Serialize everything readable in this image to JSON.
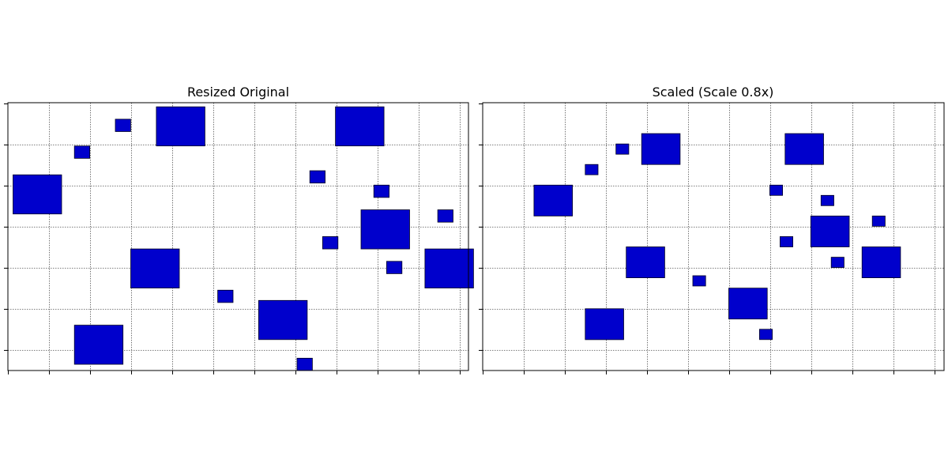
{
  "chart_data": [
    {
      "type": "scatter",
      "title": "Resized Original",
      "xlabel": "",
      "ylabel": "",
      "xlim": [
        0,
        18
      ],
      "ylim": [
        13,
        0
      ],
      "grid": true,
      "square_color": "#0000cc",
      "squares": [
        {
          "x": 0.2,
          "y": 3.5,
          "size": 1.9
        },
        {
          "x": 2.6,
          "y": 2.1,
          "size": 0.6
        },
        {
          "x": 4.2,
          "y": 0.8,
          "size": 0.6
        },
        {
          "x": 5.8,
          "y": 0.2,
          "size": 1.9
        },
        {
          "x": 4.8,
          "y": 7.1,
          "size": 1.9
        },
        {
          "x": 2.6,
          "y": 10.8,
          "size": 1.9
        },
        {
          "x": 8.2,
          "y": 9.1,
          "size": 0.6
        },
        {
          "x": 9.8,
          "y": 9.6,
          "size": 1.9
        },
        {
          "x": 11.3,
          "y": 12.4,
          "size": 0.6
        },
        {
          "x": 11.8,
          "y": 3.3,
          "size": 0.6
        },
        {
          "x": 12.3,
          "y": 6.5,
          "size": 0.6
        },
        {
          "x": 12.8,
          "y": 0.2,
          "size": 1.9
        },
        {
          "x": 14.3,
          "y": 4.0,
          "size": 0.6
        },
        {
          "x": 13.8,
          "y": 5.2,
          "size": 1.9
        },
        {
          "x": 14.8,
          "y": 7.7,
          "size": 0.6
        },
        {
          "x": 16.8,
          "y": 5.2,
          "size": 0.6
        },
        {
          "x": 16.3,
          "y": 7.1,
          "size": 1.9
        }
      ]
    },
    {
      "type": "scatter",
      "title": "Scaled (Scale 0.8x)",
      "xlabel": "",
      "ylabel": "",
      "xlim": [
        0,
        18
      ],
      "ylim": [
        13,
        0
      ],
      "grid": true,
      "square_color": "#0000cc",
      "squares": [
        {
          "x": 2.0,
          "y": 4.0,
          "size": 1.5
        },
        {
          "x": 4.0,
          "y": 3.0,
          "size": 0.5
        },
        {
          "x": 5.2,
          "y": 2.0,
          "size": 0.5
        },
        {
          "x": 6.2,
          "y": 1.5,
          "size": 1.5
        },
        {
          "x": 5.6,
          "y": 7.0,
          "size": 1.5
        },
        {
          "x": 4.0,
          "y": 10.0,
          "size": 1.5
        },
        {
          "x": 8.2,
          "y": 8.4,
          "size": 0.5
        },
        {
          "x": 9.6,
          "y": 9.0,
          "size": 1.5
        },
        {
          "x": 10.8,
          "y": 11.0,
          "size": 0.5
        },
        {
          "x": 11.2,
          "y": 4.0,
          "size": 0.5
        },
        {
          "x": 11.6,
          "y": 6.5,
          "size": 0.5
        },
        {
          "x": 11.8,
          "y": 1.5,
          "size": 1.5
        },
        {
          "x": 13.2,
          "y": 4.5,
          "size": 0.5
        },
        {
          "x": 12.8,
          "y": 5.5,
          "size": 1.5
        },
        {
          "x": 13.6,
          "y": 7.5,
          "size": 0.5
        },
        {
          "x": 15.2,
          "y": 5.5,
          "size": 0.5
        },
        {
          "x": 14.8,
          "y": 7.0,
          "size": 1.5
        }
      ]
    }
  ]
}
